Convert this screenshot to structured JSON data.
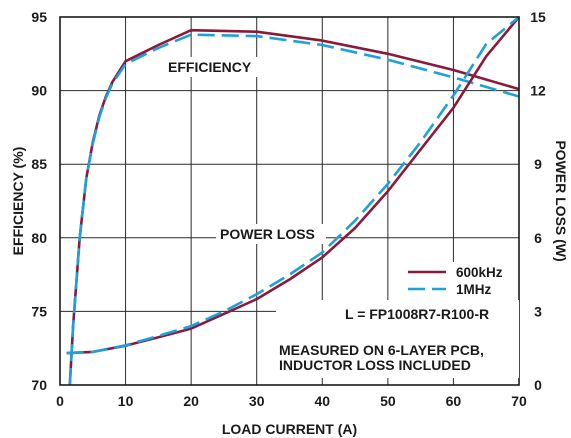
{
  "chart_data": {
    "type": "line",
    "xlabel": "LOAD CURRENT (A)",
    "ylabel_left": "EFFICIENCY (%)",
    "ylabel_right": "POWER LOSS (W)",
    "xlim": [
      0,
      70
    ],
    "ylim_left": [
      70,
      95
    ],
    "ylim_right": [
      0,
      15
    ],
    "x_ticks": [
      0,
      10,
      20,
      30,
      40,
      50,
      60,
      70
    ],
    "y_left_ticks": [
      70,
      75,
      80,
      85,
      90,
      95
    ],
    "y_right_ticks": [
      0,
      3,
      6,
      9,
      12,
      15
    ],
    "grid": true,
    "legend_position": "right, mid-lower",
    "series": [
      {
        "name": "600kHz",
        "axis": "left",
        "color": "#8b1a3a",
        "style": "solid",
        "x": [
          1.5,
          2,
          3,
          4,
          5,
          6,
          7,
          8,
          10,
          15,
          20,
          30,
          40,
          50,
          60,
          70
        ],
        "y": [
          70,
          74,
          80,
          84,
          86.5,
          88.3,
          89.6,
          90.6,
          92.0,
          93.1,
          94.1,
          94.0,
          93.4,
          92.5,
          91.4,
          90.1
        ]
      },
      {
        "name": "1MHz",
        "axis": "left",
        "color": "#1ea1d8",
        "style": "dashed",
        "x": [
          1.5,
          2,
          3,
          4,
          5,
          6,
          7,
          8,
          10,
          15,
          20,
          30,
          40,
          50,
          60,
          70
        ],
        "y": [
          70,
          74,
          80,
          84,
          86.4,
          88.2,
          89.5,
          90.5,
          91.8,
          92.9,
          93.8,
          93.7,
          93.1,
          92.1,
          90.9,
          89.6
        ]
      },
      {
        "name": "600kHz",
        "axis": "right",
        "color": "#8b1a3a",
        "style": "solid",
        "x": [
          1,
          5,
          10,
          15,
          20,
          25,
          30,
          35,
          40,
          45,
          50,
          55,
          60,
          65,
          70
        ],
        "y": [
          1.3,
          1.35,
          1.6,
          1.95,
          2.3,
          2.9,
          3.5,
          4.3,
          5.2,
          6.4,
          7.9,
          9.6,
          11.3,
          13.4,
          15.0
        ]
      },
      {
        "name": "1MHz",
        "axis": "right",
        "color": "#1ea1d8",
        "style": "dashed",
        "x": [
          1,
          5,
          10,
          15,
          20,
          25,
          30,
          35,
          40,
          45,
          50,
          55,
          60,
          65,
          70
        ],
        "y": [
          1.3,
          1.35,
          1.62,
          2.0,
          2.4,
          3.0,
          3.7,
          4.5,
          5.4,
          6.7,
          8.2,
          9.9,
          11.8,
          13.9,
          15.0
        ]
      }
    ],
    "annotations": {
      "efficiency": "EFFICIENCY",
      "power_loss": "POWER LOSS",
      "inductor": "L = FP1008R7-R100-R",
      "note_line1": "MEASURED ON 6-LAYER PCB,",
      "note_line2": "INDUCTOR LOSS INCLUDED"
    },
    "legend": [
      {
        "label": "600kHz",
        "color": "#8b1a3a",
        "style": "solid"
      },
      {
        "label": "1MHz",
        "color": "#1ea1d8",
        "style": "dashed"
      }
    ]
  }
}
